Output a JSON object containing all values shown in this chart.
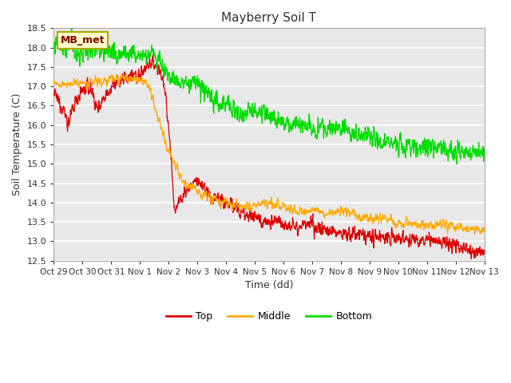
{
  "title": "Mayberry Soil T",
  "xlabel": "Time (dd)",
  "ylabel": "Soil Temperature (C)",
  "ylim": [
    12.5,
    18.5
  ],
  "yticks": [
    12.5,
    13.0,
    13.5,
    14.0,
    14.5,
    15.0,
    15.5,
    16.0,
    16.5,
    17.0,
    17.5,
    18.0,
    18.5
  ],
  "x_tick_labels": [
    "Oct 29",
    "Oct 30",
    "Oct 31",
    "Nov 1",
    "Nov 2",
    "Nov 3",
    "Nov 4",
    "Nov 5",
    "Nov 6",
    "Nov 7",
    "Nov 8",
    "Nov 9",
    "Nov 10",
    "Nov 11",
    "Nov 12",
    "Nov 13"
  ],
  "colors": {
    "top": "#dd0000",
    "middle": "#ffaa00",
    "bottom": "#00dd00",
    "background": "#e8e8e8",
    "grid": "#ffffff"
  },
  "legend_label": "MB_met",
  "legend_entries": [
    "Top",
    "Middle",
    "Bottom"
  ],
  "figsize": [
    6.4,
    4.8
  ],
  "dpi": 100
}
